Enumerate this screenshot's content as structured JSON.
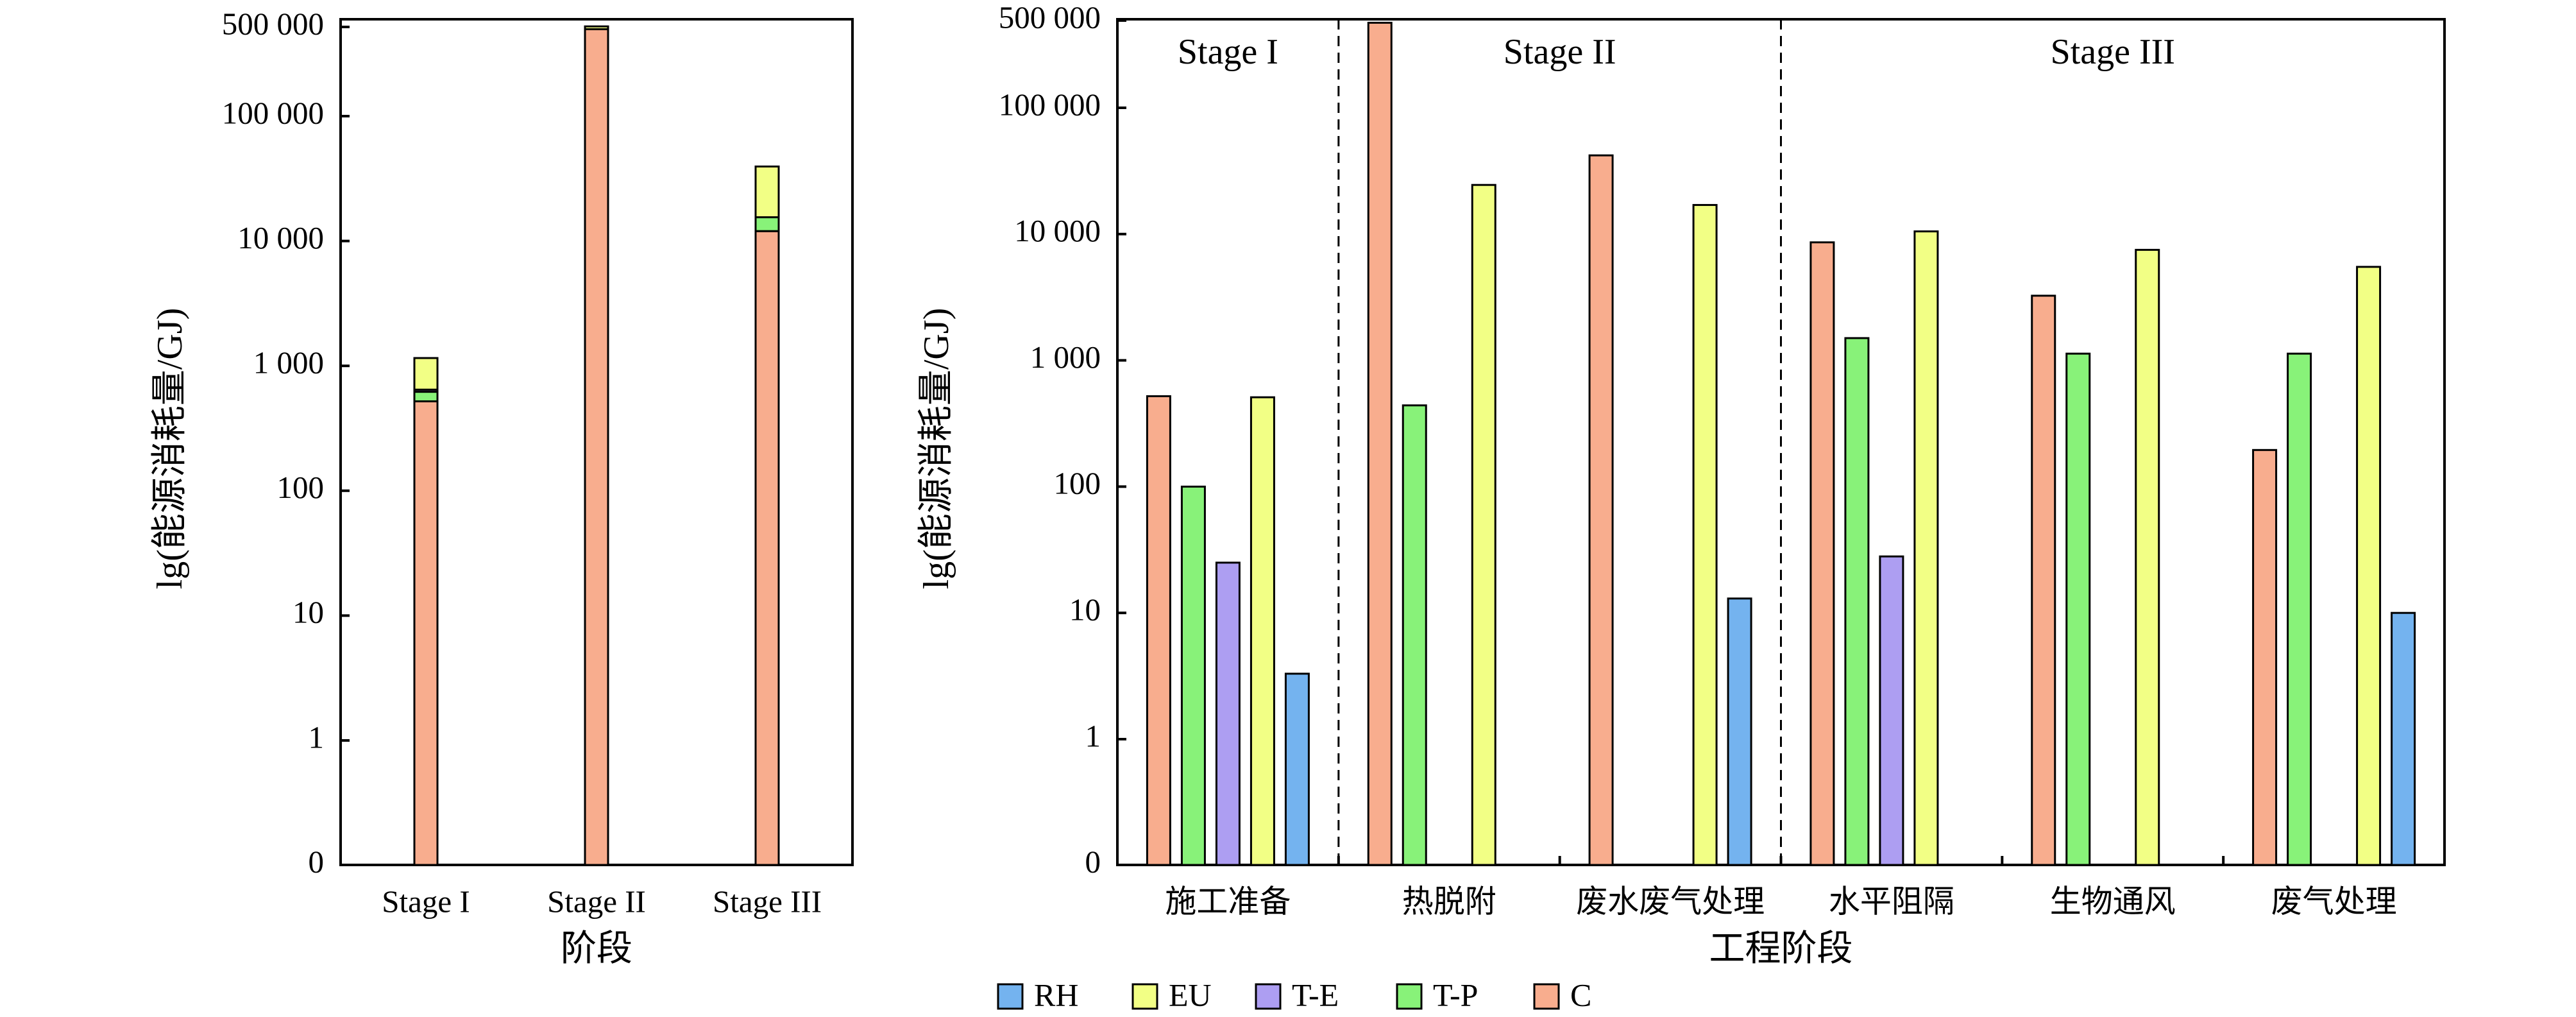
{
  "colors": {
    "RH": "#74b3ef",
    "EU": "#f2ff85",
    "T-E": "#ad9ef2",
    "T-P": "#88f279",
    "C": "#f8ad8e"
  },
  "legend": [
    "RH",
    "EU",
    "T-E",
    "T-P",
    "C"
  ],
  "chart_data": [
    {
      "type": "bar",
      "stacked": true,
      "log_scale": true,
      "title": "",
      "xlabel": "阶段",
      "ylabel": "lg(能源消耗量/GJ)",
      "yticks": [
        0,
        1,
        10,
        100,
        1000,
        10000,
        100000,
        500000
      ],
      "ytick_labels": [
        "0",
        "1",
        "10",
        "100",
        "1 000",
        "10 000",
        "100 000",
        "500 000"
      ],
      "ylim": [
        0,
        500000
      ],
      "categories": [
        "Stage I",
        "Stage II",
        "Stage III"
      ],
      "series": [
        {
          "name": "C",
          "values": [
            520,
            480000,
            12000
          ]
        },
        {
          "name": "T-P",
          "values": [
            100,
            0,
            3500
          ]
        },
        {
          "name": "T-E",
          "values": [
            25,
            0,
            0
          ]
        },
        {
          "name": "EU",
          "values": [
            510,
            25000,
            24000
          ]
        },
        {
          "name": "RH",
          "values": [
            3.3,
            0,
            13
          ]
        }
      ]
    },
    {
      "type": "bar",
      "grouped": true,
      "log_scale": true,
      "title": "",
      "xlabel": "工程阶段",
      "ylabel": "lg(能源消耗量/GJ)",
      "yticks": [
        0,
        1,
        10,
        100,
        1000,
        10000,
        100000,
        500000
      ],
      "ytick_labels": [
        "0",
        "1",
        "10",
        "100",
        "1 000",
        "10 000",
        "100 000",
        "500 000"
      ],
      "ylim": [
        0,
        500000
      ],
      "stage_labels": [
        "Stage I",
        "Stage II",
        "Stage III"
      ],
      "categories": [
        "施工准备",
        "热脱附",
        "废水废气处理",
        "水平阻隔",
        "生物通风",
        "废气处理"
      ],
      "series": [
        {
          "name": "C",
          "values": [
            520,
            480000,
            42000,
            8600,
            3250,
            195
          ]
        },
        {
          "name": "T-P",
          "values": [
            100,
            440,
            0,
            1500,
            1130,
            1130
          ]
        },
        {
          "name": "T-E",
          "values": [
            25,
            0,
            0,
            28,
            0,
            0
          ]
        },
        {
          "name": "EU",
          "values": [
            510,
            24500,
            17000,
            10500,
            7500,
            5500
          ]
        },
        {
          "name": "RH",
          "values": [
            3.3,
            0,
            13,
            0,
            0,
            10
          ]
        }
      ]
    }
  ]
}
